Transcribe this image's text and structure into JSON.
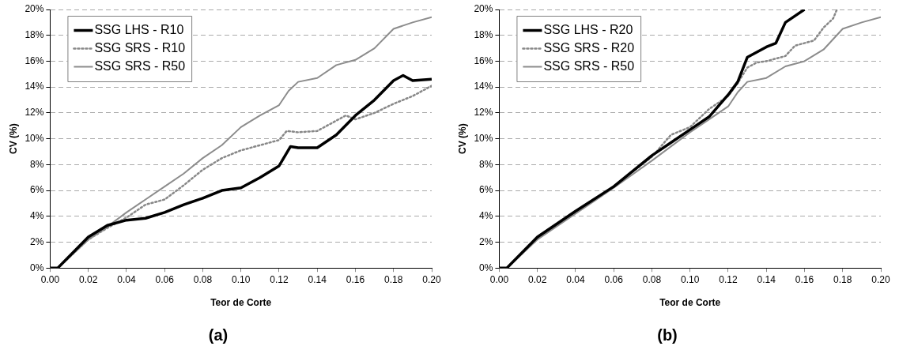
{
  "chart_data": [
    {
      "type": "line",
      "title": "(a)",
      "xlabel": "Teor de Corte",
      "ylabel": "CV (%)",
      "xlim": [
        0,
        0.2
      ],
      "ylim": [
        0,
        20
      ],
      "xticks": [
        {
          "value": 0,
          "label": "0.00"
        },
        {
          "value": 0.02,
          "label": "0.02"
        },
        {
          "value": 0.04,
          "label": "0.04"
        },
        {
          "value": 0.06,
          "label": "0.06"
        },
        {
          "value": 0.08,
          "label": "0.08"
        },
        {
          "value": 0.1,
          "label": "0.10"
        },
        {
          "value": 0.12,
          "label": "0.12"
        },
        {
          "value": 0.14,
          "label": "0.14"
        },
        {
          "value": 0.16,
          "label": "0.16"
        },
        {
          "value": 0.18,
          "label": "0.18"
        },
        {
          "value": 0.2,
          "label": "0.20"
        }
      ],
      "yticks": [
        {
          "value": 0,
          "label": "0%"
        },
        {
          "value": 2,
          "label": "2%"
        },
        {
          "value": 4,
          "label": "4%"
        },
        {
          "value": 6,
          "label": "6%"
        },
        {
          "value": 8,
          "label": "8%"
        },
        {
          "value": 10,
          "label": "10%"
        },
        {
          "value": 12,
          "label": "12%"
        },
        {
          "value": 14,
          "label": "14%"
        },
        {
          "value": 16,
          "label": "16%"
        },
        {
          "value": 18,
          "label": "18%"
        },
        {
          "value": 20,
          "label": "20%"
        }
      ],
      "grid": "y",
      "legend": "top left",
      "marker": "none",
      "series": [
        {
          "name": "SSG LHS - R10",
          "color": "#000000",
          "line_style": "solid",
          "x": [
            0,
            0.004,
            0.01,
            0.02,
            0.03,
            0.04,
            0.05,
            0.06,
            0.07,
            0.08,
            0.09,
            0.1,
            0.11,
            0.12,
            0.126,
            0.13,
            0.14,
            0.15,
            0.16,
            0.17,
            0.18,
            0.185,
            0.19,
            0.2
          ],
          "values": [
            0,
            0,
            0.9,
            2.4,
            3.3,
            3.7,
            3.85,
            4.3,
            4.9,
            5.4,
            6.0,
            6.2,
            7.0,
            7.9,
            9.4,
            9.3,
            9.3,
            10.3,
            11.8,
            13.0,
            14.5,
            14.9,
            14.5,
            14.6
          ]
        },
        {
          "name": "SSG SRS - R10",
          "color": "#888888",
          "line_style": "dotted",
          "x": [
            0,
            0.004,
            0.02,
            0.03,
            0.04,
            0.05,
            0.06,
            0.07,
            0.08,
            0.09,
            0.1,
            0.11,
            0.12,
            0.124,
            0.13,
            0.14,
            0.15,
            0.155,
            0.16,
            0.17,
            0.18,
            0.19,
            0.2
          ],
          "values": [
            0,
            0,
            2.2,
            3.1,
            3.9,
            4.9,
            5.3,
            6.4,
            7.6,
            8.5,
            9.1,
            9.5,
            9.9,
            10.6,
            10.5,
            10.6,
            11.4,
            11.8,
            11.5,
            12.0,
            12.7,
            13.3,
            14.1
          ]
        },
        {
          "name": "SSG SRS - R50",
          "color": "#8c8c8c",
          "line_style": "solid",
          "x": [
            0,
            0.004,
            0.02,
            0.03,
            0.04,
            0.05,
            0.06,
            0.07,
            0.08,
            0.09,
            0.1,
            0.11,
            0.12,
            0.125,
            0.13,
            0.14,
            0.15,
            0.16,
            0.17,
            0.18,
            0.19,
            0.2
          ],
          "values": [
            0,
            0,
            2.2,
            3.2,
            4.3,
            5.3,
            6.3,
            7.3,
            8.5,
            9.5,
            10.9,
            11.8,
            12.6,
            13.7,
            14.4,
            14.7,
            15.7,
            16.1,
            17.0,
            18.5,
            19.0,
            19.4
          ]
        }
      ]
    },
    {
      "type": "line",
      "title": "(b)",
      "xlabel": "Teor de Corte",
      "ylabel": "CV (%)",
      "xlim": [
        0,
        0.2
      ],
      "ylim": [
        0,
        20
      ],
      "xticks": [
        {
          "value": 0,
          "label": "0.00"
        },
        {
          "value": 0.02,
          "label": "0.02"
        },
        {
          "value": 0.04,
          "label": "0.04"
        },
        {
          "value": 0.06,
          "label": "0.06"
        },
        {
          "value": 0.08,
          "label": "0.08"
        },
        {
          "value": 0.1,
          "label": "0.10"
        },
        {
          "value": 0.12,
          "label": "0.12"
        },
        {
          "value": 0.14,
          "label": "0.14"
        },
        {
          "value": 0.16,
          "label": "0.16"
        },
        {
          "value": 0.18,
          "label": "0.18"
        },
        {
          "value": 0.2,
          "label": "0.20"
        }
      ],
      "yticks": [
        {
          "value": 0,
          "label": "0%"
        },
        {
          "value": 2,
          "label": "2%"
        },
        {
          "value": 4,
          "label": "4%"
        },
        {
          "value": 6,
          "label": "6%"
        },
        {
          "value": 8,
          "label": "8%"
        },
        {
          "value": 10,
          "label": "10%"
        },
        {
          "value": 12,
          "label": "12%"
        },
        {
          "value": 14,
          "label": "14%"
        },
        {
          "value": 16,
          "label": "16%"
        },
        {
          "value": 18,
          "label": "18%"
        },
        {
          "value": 20,
          "label": "20%"
        }
      ],
      "grid": "y",
      "legend": "top left",
      "marker": "none",
      "series": [
        {
          "name": "SSG LHS - R20",
          "color": "#000000",
          "line_style": "solid",
          "x": [
            0,
            0.004,
            0.01,
            0.02,
            0.04,
            0.06,
            0.08,
            0.09,
            0.1,
            0.11,
            0.12,
            0.125,
            0.13,
            0.14,
            0.145,
            0.15,
            0.16
          ],
          "values": [
            0,
            0,
            0.9,
            2.4,
            4.4,
            6.3,
            8.7,
            9.7,
            10.7,
            11.7,
            13.4,
            14.4,
            16.3,
            17.1,
            17.4,
            19.0,
            20
          ]
        },
        {
          "name": "SSG SRS - R20",
          "color": "#888888",
          "line_style": "dotted",
          "x": [
            0,
            0.004,
            0.02,
            0.04,
            0.06,
            0.08,
            0.09,
            0.1,
            0.11,
            0.12,
            0.125,
            0.13,
            0.135,
            0.14,
            0.15,
            0.155,
            0.165,
            0.17,
            0.175,
            0.177
          ],
          "values": [
            0,
            0,
            2.3,
            4.3,
            6.3,
            8.6,
            10.3,
            10.9,
            12.3,
            13.3,
            14.3,
            15.5,
            15.9,
            16.0,
            16.4,
            17.2,
            17.6,
            18.6,
            19.3,
            20
          ]
        },
        {
          "name": "SSG SRS - R50",
          "color": "#8c8c8c",
          "line_style": "solid",
          "x": [
            0,
            0.004,
            0.02,
            0.04,
            0.06,
            0.08,
            0.09,
            0.1,
            0.11,
            0.12,
            0.125,
            0.13,
            0.14,
            0.15,
            0.16,
            0.17,
            0.18,
            0.19,
            0.2
          ],
          "values": [
            0,
            0,
            2.2,
            4.2,
            6.2,
            8.3,
            9.4,
            10.5,
            11.5,
            12.5,
            13.6,
            14.4,
            14.7,
            15.6,
            16.0,
            16.9,
            18.5,
            19.0,
            19.4
          ]
        }
      ]
    }
  ]
}
